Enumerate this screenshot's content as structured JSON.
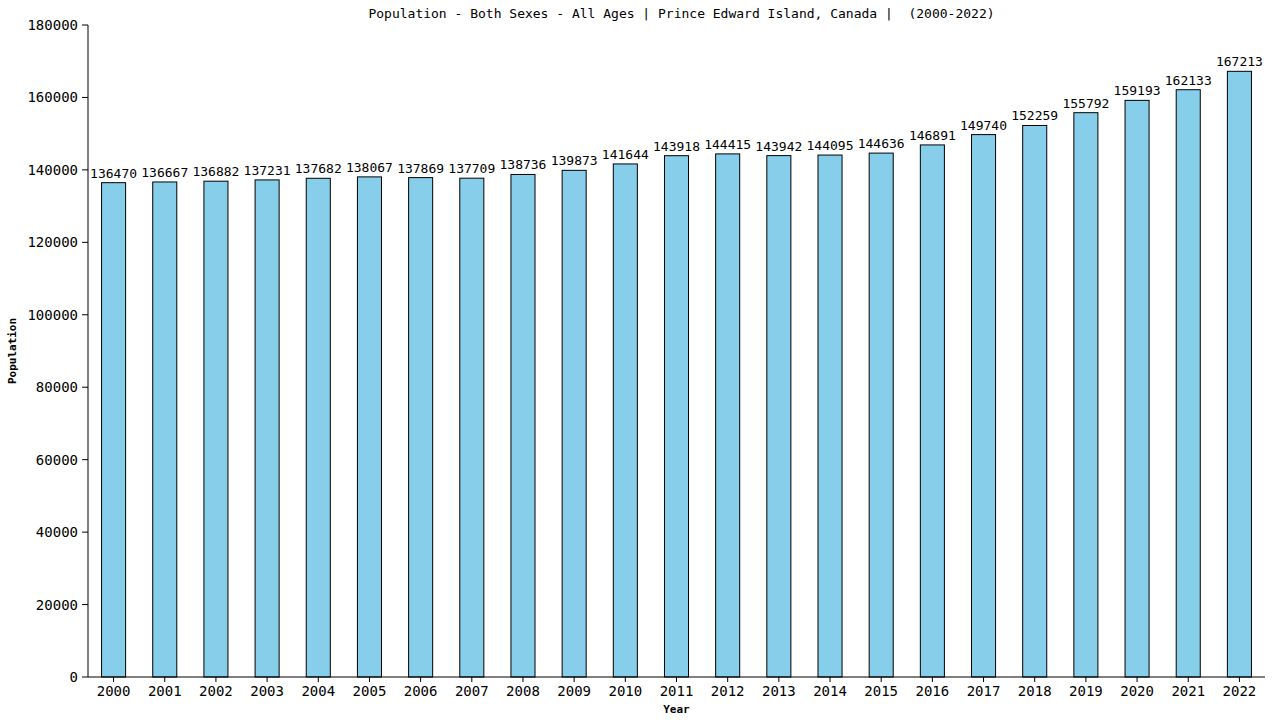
{
  "chart_data": {
    "type": "bar",
    "title": "Population - Both Sexes - All Ages | Prince Edward Island, Canada |  (2000-2022)",
    "x_label": "Year",
    "y_label": "Population",
    "categories": [
      "2000",
      "2001",
      "2002",
      "2003",
      "2004",
      "2005",
      "2006",
      "2007",
      "2008",
      "2009",
      "2010",
      "2011",
      "2012",
      "2013",
      "2014",
      "2015",
      "2016",
      "2017",
      "2018",
      "2019",
      "2020",
      "2021",
      "2022"
    ],
    "values": [
      136470,
      136667,
      136882,
      137231,
      137682,
      138067,
      137869,
      137709,
      138736,
      139873,
      141644,
      143918,
      144415,
      143942,
      144095,
      144636,
      146891,
      149740,
      152259,
      155792,
      159193,
      162133,
      167213
    ],
    "color": "#87ceeb",
    "ylim": [
      0,
      180000
    ],
    "yticks": [
      0,
      20000,
      40000,
      60000,
      80000,
      100000,
      120000,
      140000,
      160000,
      180000
    ],
    "grid": false,
    "data_labels": true
  }
}
